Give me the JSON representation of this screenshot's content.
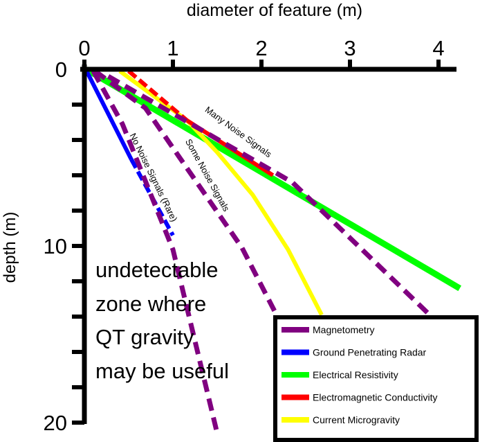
{
  "chart_data": {
    "type": "line",
    "xlabel": "diameter of feature (m)",
    "ylabel": "depth (m)",
    "xlim": [
      0,
      4.2
    ],
    "ylim": [
      0,
      20
    ],
    "y_inverted": true,
    "x_ticks": [
      "0",
      "1",
      "2",
      "3",
      "4"
    ],
    "x_tick_values": [
      0,
      1,
      2,
      3,
      4
    ],
    "y_ticks": [
      "0",
      "10",
      "20"
    ],
    "y_tick_values": [
      0,
      10,
      20
    ],
    "y_minor_tick_step": 2,
    "grid": false,
    "legend_position": "bottom-right",
    "colors": {
      "magnetometry": "#800080",
      "gpr": "#0000ff",
      "resistivity": "#00ff00",
      "em": "#ff0000",
      "microgravity": "#ffff00"
    },
    "legend": [
      {
        "label": "Magnetometry",
        "key": "magnetometry"
      },
      {
        "label": "Ground Penetrating Radar",
        "key": "gpr"
      },
      {
        "label": "Electrical Resistivity",
        "key": "resistivity"
      },
      {
        "label": "Electromagnetic Conductivity",
        "key": "em"
      },
      {
        "label": "Current Microgravity",
        "key": "microgravity"
      }
    ],
    "series": [
      {
        "name": "Electrical Resistivity",
        "key": "resistivity",
        "style": "solid",
        "points": [
          [
            0.02,
            0
          ],
          [
            4.24,
            12.4
          ]
        ]
      },
      {
        "name": "Current Microgravity",
        "key": "microgravity",
        "style": "solid",
        "points": [
          [
            0.4,
            0.1
          ],
          [
            1.16,
            2.9
          ],
          [
            1.5,
            4.7
          ],
          [
            1.9,
            7.1
          ],
          [
            2.3,
            10.2
          ],
          [
            2.68,
            13.9
          ]
        ]
      },
      {
        "name": "Electromagnetic Conductivity (dashed)",
        "key": "em",
        "style": "dashed",
        "points": [
          [
            0.5,
            0.1
          ],
          [
            1.16,
            2.9
          ]
        ]
      },
      {
        "name": "Electromagnetic Conductivity",
        "key": "em",
        "style": "solid",
        "points": [
          [
            1.16,
            2.9
          ],
          [
            2.13,
            6.0
          ]
        ]
      },
      {
        "name": "Ground Penetrating Radar",
        "key": "gpr",
        "style": "solid",
        "points": [
          [
            0.02,
            0.05
          ],
          [
            0.53,
            5.1
          ]
        ]
      },
      {
        "name": "Ground Penetrating Radar (dashed)",
        "key": "gpr",
        "style": "dashed",
        "points": [
          [
            0.53,
            5.1
          ],
          [
            1.0,
            9.4
          ]
        ]
      },
      {
        "name": "Magnetometry - Many Noise Signals",
        "key": "magnetometry",
        "style": "dashed",
        "points": [
          [
            0.27,
            0.4
          ],
          [
            2.35,
            6.4
          ],
          [
            3.9,
            13.9
          ]
        ]
      },
      {
        "name": "Magnetometry - Some Noise Signals",
        "key": "magnetometry",
        "style": "dashed",
        "points": [
          [
            0.12,
            0.1
          ],
          [
            0.69,
            2.2
          ],
          [
            1.78,
            10.1
          ],
          [
            2.17,
            13.9
          ]
        ]
      },
      {
        "name": "Magnetometry - No Noise Signals (Rare)",
        "key": "magnetometry",
        "style": "dashed",
        "points": [
          [
            0.1,
            0.1
          ],
          [
            0.43,
            3.1
          ],
          [
            1.0,
            10.2
          ],
          [
            1.5,
            20.6
          ]
        ]
      }
    ],
    "annotations": {
      "many_noise": "Many Noise Signals",
      "some_noise": "Some Noise Signals",
      "no_noise": "No Noise Signals (Rare)",
      "zone_lines": [
        "undetectable",
        "zone where",
        "QT gravity",
        "may be useful"
      ]
    }
  }
}
